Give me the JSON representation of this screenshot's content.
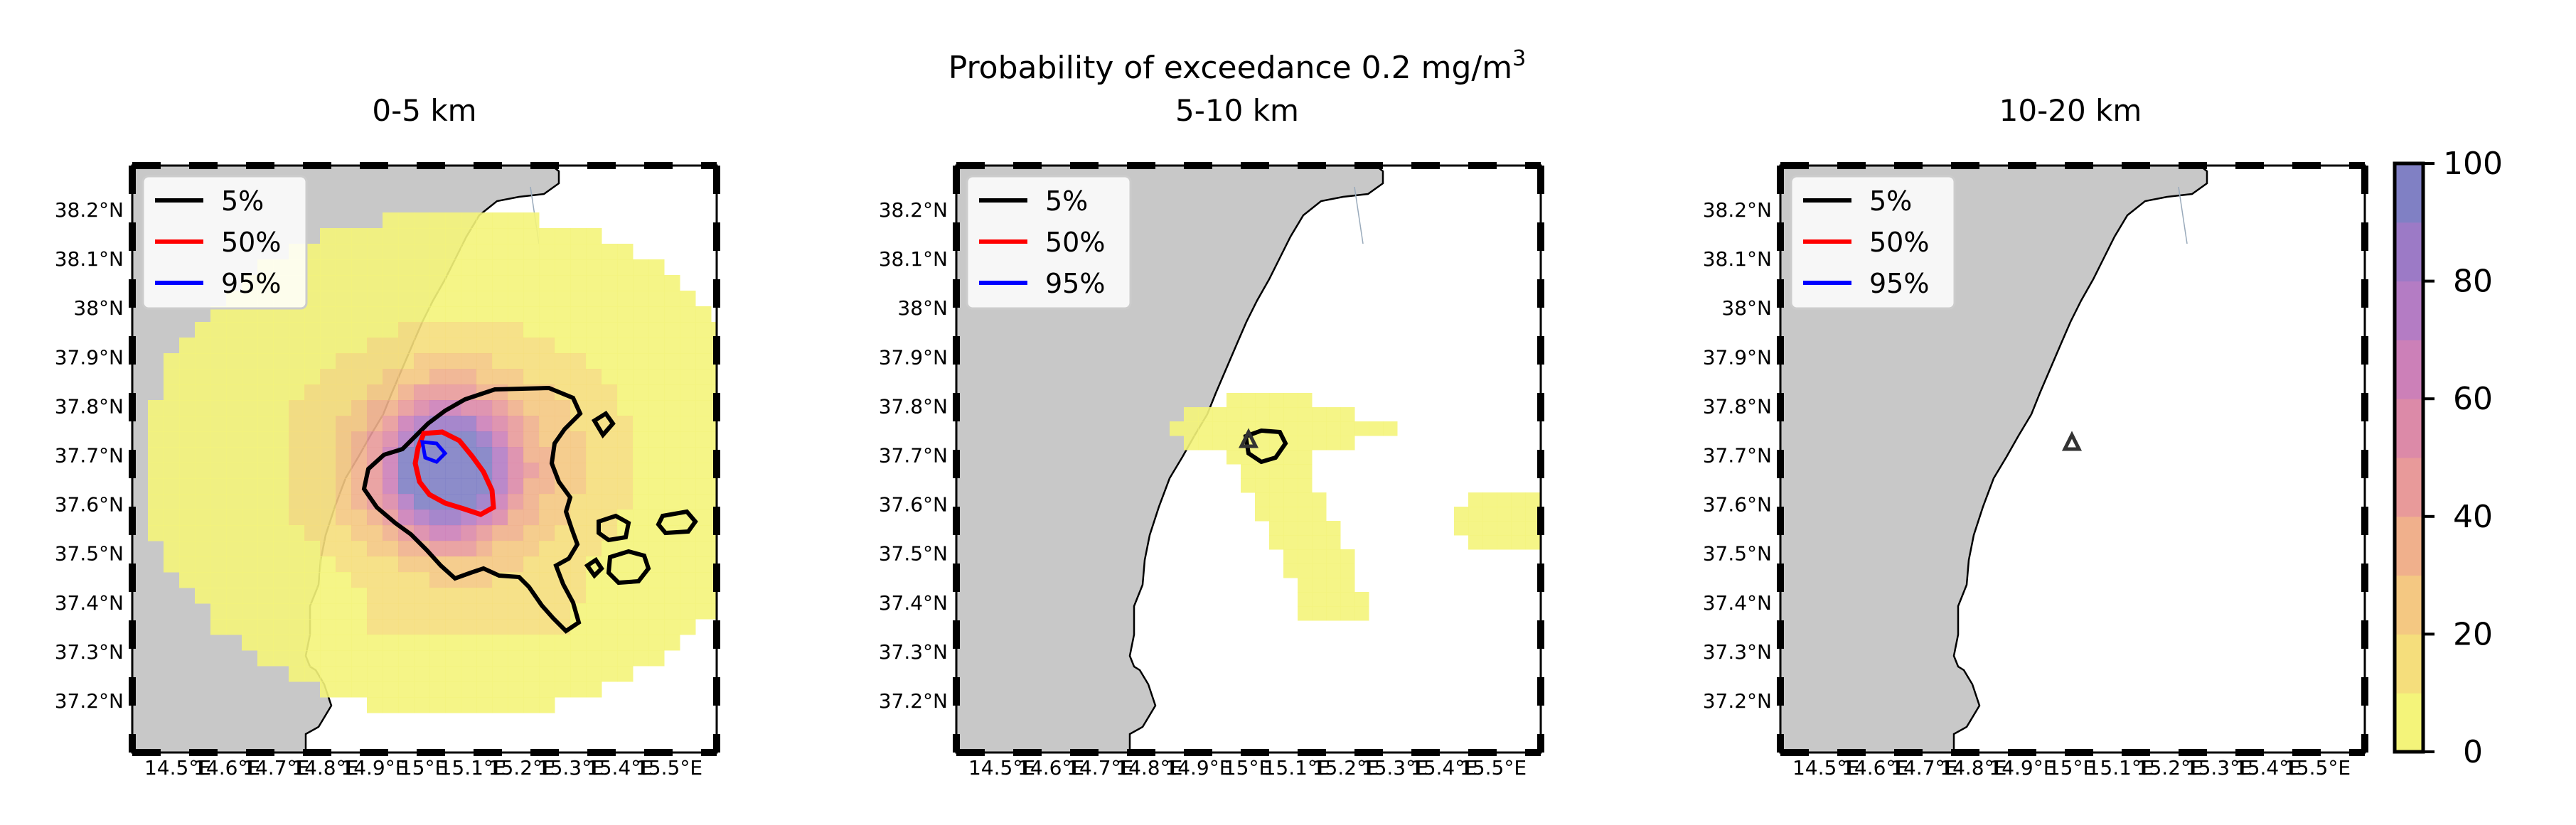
{
  "figure": {
    "suptitle_main": "Probability of exceedance 0.2 mg/m",
    "suptitle_sup": "3"
  },
  "panels": [
    {
      "title": "0-5 km",
      "vent_marker": false
    },
    {
      "title": "5-10 km",
      "vent_marker": true
    },
    {
      "title": "10-20 km",
      "vent_marker": true
    }
  ],
  "legend": {
    "items": [
      {
        "label": "5%",
        "color": "#000000"
      },
      {
        "label": "50%",
        "color": "#ff0000"
      },
      {
        "label": "95%",
        "color": "#0000ff"
      }
    ]
  },
  "axes": {
    "lat_ticks": [
      "38.2°N",
      "38.1°N",
      "38°N",
      "37.9°N",
      "37.8°N",
      "37.7°N",
      "37.6°N",
      "37.5°N",
      "37.4°N",
      "37.3°N",
      "37.2°N"
    ],
    "lon_ticks": [
      "14.5°E",
      "14.6°E",
      "14.7°E",
      "14.8°E",
      "14.9°E",
      "15°E",
      "15.1°E",
      "15.2°E",
      "15.3°E",
      "15.4°E",
      "15.5°E"
    ],
    "lon_range": [
      14.44,
      15.6
    ],
    "lat_range": [
      37.1,
      38.29
    ]
  },
  "colorbar": {
    "ticks": [
      "0",
      "20",
      "40",
      "60",
      "80",
      "100"
    ],
    "range": [
      0,
      100
    ],
    "colors": [
      "#f4f47a",
      "#f5de7c",
      "#f4c882",
      "#f0b08c",
      "#e89a9a",
      "#dc8aa8",
      "#cc80b8",
      "#b47cc4",
      "#9c7ac6",
      "#8080c4"
    ]
  },
  "colors": {
    "land": "#c8c8c8",
    "sea": "#ffffff",
    "coast": "#000000"
  }
}
